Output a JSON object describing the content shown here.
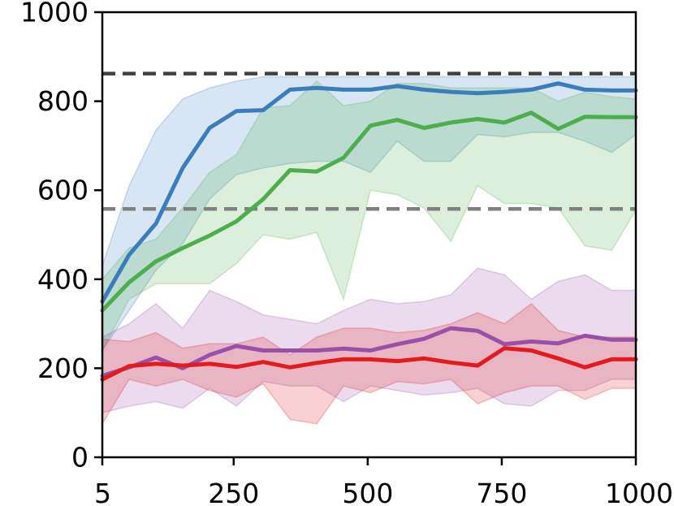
{
  "chart_data": {
    "type": "line",
    "title": "",
    "xlabel": "",
    "ylabel": "",
    "xlim": [
      5,
      1000
    ],
    "ylim": [
      0,
      1000
    ],
    "x_ticks": [
      5,
      250,
      500,
      750,
      1000
    ],
    "x_tick_labels": [
      "5",
      "250",
      "500",
      "750",
      "1000"
    ],
    "y_ticks": [
      0,
      200,
      400,
      600,
      800,
      1000
    ],
    "y_tick_labels": [
      "0",
      "200",
      "400",
      "600",
      "800",
      "1000"
    ],
    "grid": false,
    "legend": "none",
    "x": [
      5,
      55,
      105,
      155,
      205,
      255,
      305,
      355,
      405,
      455,
      505,
      555,
      605,
      655,
      705,
      755,
      805,
      855,
      905,
      955,
      1000
    ],
    "reference_lines": [
      {
        "y": 862,
        "style": "dashed",
        "color": "#404040"
      },
      {
        "y": 558,
        "style": "dashed",
        "color": "#808080"
      }
    ],
    "series": [
      {
        "color": "#3a7dbf",
        "values": [
          350,
          455,
          525,
          650,
          740,
          778,
          780,
          826,
          830,
          826,
          826,
          834,
          826,
          821,
          818,
          821,
          826,
          840,
          826,
          824,
          824
        ],
        "upper": [
          430,
          610,
          735,
          805,
          830,
          845,
          855,
          855,
          855,
          855,
          855,
          855,
          855,
          855,
          855,
          855,
          855,
          855,
          855,
          855,
          855
        ],
        "lower": [
          240,
          330,
          420,
          480,
          580,
          635,
          650,
          660,
          665,
          665,
          640,
          710,
          665,
          665,
          725,
          720,
          730,
          730,
          710,
          685,
          725
        ]
      },
      {
        "color": "#4cae4c",
        "values": [
          330,
          393,
          440,
          470,
          498,
          530,
          580,
          645,
          642,
          673,
          745,
          758,
          740,
          752,
          760,
          752,
          774,
          738,
          765,
          764,
          764
        ],
        "upper": [
          400,
          470,
          490,
          560,
          640,
          680,
          785,
          790,
          845,
          790,
          800,
          840,
          840,
          830,
          830,
          830,
          830,
          800,
          820,
          810,
          805
        ],
        "lower": [
          240,
          355,
          390,
          390,
          390,
          435,
          500,
          490,
          505,
          355,
          600,
          590,
          560,
          485,
          610,
          570,
          570,
          560,
          475,
          465,
          555
        ]
      },
      {
        "color": "#9850a8",
        "values": [
          183,
          202,
          224,
          200,
          230,
          250,
          240,
          240,
          240,
          244,
          240,
          254,
          266,
          290,
          284,
          254,
          260,
          256,
          273,
          264,
          264
        ],
        "upper": [
          270,
          300,
          345,
          290,
          375,
          350,
          320,
          310,
          300,
          330,
          355,
          345,
          350,
          365,
          425,
          410,
          355,
          395,
          410,
          375,
          375
        ],
        "lower": [
          100,
          115,
          125,
          110,
          155,
          115,
          170,
          160,
          160,
          125,
          160,
          150,
          140,
          145,
          155,
          120,
          115,
          150,
          150,
          175,
          175
        ]
      },
      {
        "color": "#e41a1c",
        "values": [
          175,
          205,
          210,
          206,
          210,
          203,
          214,
          202,
          212,
          220,
          220,
          216,
          222,
          213,
          206,
          245,
          240,
          222,
          202,
          220,
          220
        ],
        "upper": [
          265,
          260,
          280,
          245,
          255,
          255,
          270,
          230,
          270,
          290,
          290,
          280,
          285,
          300,
          325,
          300,
          345,
          285,
          270,
          270,
          270
        ],
        "lower": [
          75,
          175,
          160,
          175,
          150,
          135,
          165,
          85,
          75,
          160,
          145,
          170,
          165,
          175,
          120,
          145,
          160,
          160,
          130,
          155,
          155
        ]
      }
    ]
  }
}
